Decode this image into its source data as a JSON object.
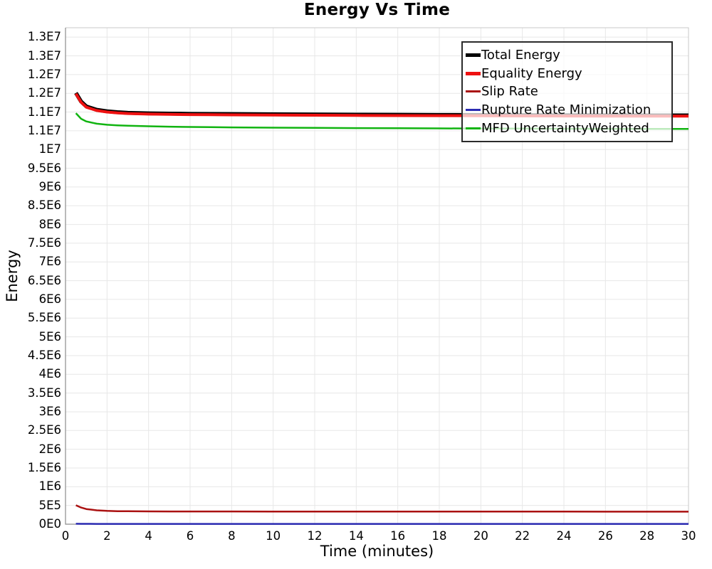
{
  "chart_data": {
    "type": "line",
    "title": "Energy Vs Time",
    "xlabel": "Time (minutes)",
    "ylabel": "Energy",
    "xlim": [
      0,
      30
    ],
    "ylim": [
      0,
      13250000
    ],
    "grid": true,
    "legend_position": "top-right",
    "grid_color": "#e7e7e7",
    "axis_border_color": "#8c8c8c",
    "x_ticks": [
      {
        "value": 0,
        "label": "0"
      },
      {
        "value": 2,
        "label": "2"
      },
      {
        "value": 4,
        "label": "4"
      },
      {
        "value": 6,
        "label": "6"
      },
      {
        "value": 8,
        "label": "8"
      },
      {
        "value": 10,
        "label": "10"
      },
      {
        "value": 12,
        "label": "12"
      },
      {
        "value": 14,
        "label": "14"
      },
      {
        "value": 16,
        "label": "16"
      },
      {
        "value": 18,
        "label": "18"
      },
      {
        "value": 20,
        "label": "20"
      },
      {
        "value": 22,
        "label": "22"
      },
      {
        "value": 24,
        "label": "24"
      },
      {
        "value": 26,
        "label": "26"
      },
      {
        "value": 28,
        "label": "28"
      },
      {
        "value": 30,
        "label": "30"
      }
    ],
    "y_ticks": [
      {
        "value": 0,
        "label": "0E0"
      },
      {
        "value": 500000,
        "label": "5E5"
      },
      {
        "value": 1000000,
        "label": "1E6"
      },
      {
        "value": 1500000,
        "label": "1.5E6"
      },
      {
        "value": 2000000,
        "label": "2E6"
      },
      {
        "value": 2500000,
        "label": "2.5E6"
      },
      {
        "value": 3000000,
        "label": "3E6"
      },
      {
        "value": 3500000,
        "label": "3.5E6"
      },
      {
        "value": 4000000,
        "label": "4E6"
      },
      {
        "value": 4500000,
        "label": "4.5E6"
      },
      {
        "value": 5000000,
        "label": "5E6"
      },
      {
        "value": 5500000,
        "label": "5.5E6"
      },
      {
        "value": 6000000,
        "label": "6E6"
      },
      {
        "value": 6500000,
        "label": "6.5E6"
      },
      {
        "value": 7000000,
        "label": "7E6"
      },
      {
        "value": 7500000,
        "label": "7.5E6"
      },
      {
        "value": 8000000,
        "label": "8E6"
      },
      {
        "value": 8500000,
        "label": "8.5E6"
      },
      {
        "value": 9000000,
        "label": "9E6"
      },
      {
        "value": 9500000,
        "label": "9.5E6"
      },
      {
        "value": 10000000,
        "label": "1E7"
      },
      {
        "value": 10500000,
        "label": "1.1E7"
      },
      {
        "value": 11000000,
        "label": "1.1E7"
      },
      {
        "value": 11500000,
        "label": "1.2E7"
      },
      {
        "value": 12000000,
        "label": "1.2E7"
      },
      {
        "value": 12500000,
        "label": "1.3E7"
      },
      {
        "value": 13000000,
        "label": "1.3E7"
      }
    ],
    "x": [
      0.5,
      0.75,
      1,
      1.5,
      2,
      2.5,
      3,
      4,
      5,
      6,
      7,
      8,
      10,
      12,
      14,
      16,
      18,
      20,
      22,
      24,
      26,
      28,
      30
    ],
    "series": [
      {
        "name": "Total Energy",
        "color": "#000000",
        "width": 5.5,
        "values": [
          11510000,
          11280000,
          11150000,
          11060000,
          11020000,
          10995000,
          10980000,
          10965000,
          10958000,
          10952000,
          10948000,
          10945000,
          10940000,
          10935000,
          10930000,
          10926000,
          10923000,
          10920000,
          10917000,
          10915000,
          10913000,
          10911000,
          10910000
        ]
      },
      {
        "name": "Equality Energy",
        "color": "#ee1111",
        "width": 4,
        "values": [
          11490000,
          11260000,
          11130000,
          11040000,
          11000000,
          10975000,
          10960000,
          10945000,
          10938000,
          10932000,
          10928000,
          10925000,
          10920000,
          10915000,
          10910000,
          10906000,
          10903000,
          10900000,
          10897000,
          10895000,
          10893000,
          10891000,
          10890000
        ]
      },
      {
        "name": "Slip Rate",
        "color": "#aa1111",
        "width": 2.5,
        "values": [
          505000,
          445000,
          405000,
          370000,
          355000,
          348000,
          345000,
          341000,
          340000,
          340000,
          339000,
          339000,
          338000,
          338000,
          337000,
          337000,
          337000,
          336000,
          336000,
          336000,
          335000,
          335000,
          335000
        ]
      },
      {
        "name": "Rupture Rate Minimization",
        "color": "#2b2bb2",
        "width": 2.5,
        "values": [
          12000,
          10000,
          9000,
          8500,
          8000,
          8000,
          8000,
          8000,
          8000,
          8000,
          8000,
          8000,
          7500,
          7500,
          7500,
          7000,
          7000,
          7000,
          7000,
          7000,
          7000,
          7000,
          7000
        ]
      },
      {
        "name": "MFD UncertaintyWeighted",
        "color": "#11b411",
        "width": 2.5,
        "values": [
          10970000,
          10820000,
          10750000,
          10690000,
          10660000,
          10645000,
          10635000,
          10620000,
          10610000,
          10602000,
          10596000,
          10591000,
          10583000,
          10577000,
          10572000,
          10568000,
          10564000,
          10561000,
          10558000,
          10555000,
          10553000,
          10551000,
          10550000
        ]
      }
    ]
  }
}
